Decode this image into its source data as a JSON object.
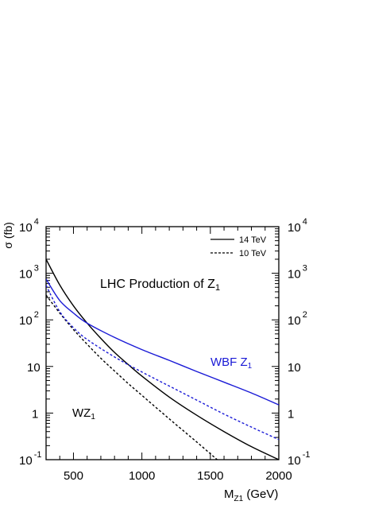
{
  "chart_data": {
    "type": "line",
    "title": "",
    "ylabel": "σ (fb)",
    "xlabel_main": "M",
    "xlabel_sub": "Z1",
    "xlabel_unit": " (GeV)",
    "xlim": [
      300,
      2000
    ],
    "ylim": [
      0.1,
      10000
    ],
    "yscale": "log",
    "x_ticks": [
      500,
      1000,
      1500,
      2000
    ],
    "y_ticks": [
      {
        "value": 10000,
        "base": "10",
        "exp": "4"
      },
      {
        "value": 1000,
        "base": "10",
        "exp": "3"
      },
      {
        "value": 100,
        "base": "10",
        "exp": "2"
      },
      {
        "value": 10,
        "base": "10",
        "exp": ""
      },
      {
        "value": 1,
        "base": "1",
        "exp": ""
      },
      {
        "value": 0.1,
        "base": "10",
        "exp": "-1"
      }
    ],
    "legend": [
      {
        "label": "14 TeV",
        "style": "solid"
      },
      {
        "label": "10 TeV",
        "style": "dashed"
      }
    ],
    "annotations": {
      "main_text": "LHC Production of Z",
      "main_sub": "1",
      "wbf_text": "WBF Z",
      "wbf_sub": "1",
      "wz_text": "WZ",
      "wz_sub": "1"
    },
    "series": [
      {
        "process": "WZ1",
        "energy": "14 TeV",
        "color": "#000000",
        "style": "solid",
        "x": [
          300,
          400,
          500,
          600,
          700,
          800,
          900,
          1000,
          1200,
          1400,
          1600,
          1800,
          2000
        ],
        "y": [
          2000,
          560,
          200,
          85,
          40,
          20,
          11,
          6.2,
          2.2,
          0.9,
          0.4,
          0.19,
          0.1
        ]
      },
      {
        "process": "WZ1",
        "energy": "10 TeV",
        "color": "#000000",
        "style": "dashed",
        "x": [
          300,
          400,
          500,
          600,
          700,
          800,
          900,
          1000,
          1200,
          1400,
          1550
        ],
        "y": [
          340,
          140,
          62,
          30,
          15,
          8.0,
          4.3,
          2.4,
          0.75,
          0.24,
          0.1
        ]
      },
      {
        "process": "WBF Z1",
        "energy": "14 TeV",
        "color": "#1a1ad6",
        "style": "solid",
        "x": [
          300,
          400,
          500,
          600,
          800,
          1000,
          1200,
          1400,
          1600,
          1800,
          2000
        ],
        "y": [
          750,
          260,
          140,
          85,
          42,
          23,
          13.5,
          7.8,
          4.6,
          2.7,
          1.5
        ]
      },
      {
        "process": "WBF Z1",
        "energy": "10 TeV",
        "color": "#1a1ad6",
        "style": "dashed",
        "x": [
          300,
          400,
          500,
          600,
          800,
          1000,
          1200,
          1400,
          1600,
          1800,
          2000
        ],
        "y": [
          550,
          150,
          68,
          38,
          16,
          7.6,
          3.8,
          1.9,
          0.95,
          0.5,
          0.27
        ]
      }
    ]
  }
}
